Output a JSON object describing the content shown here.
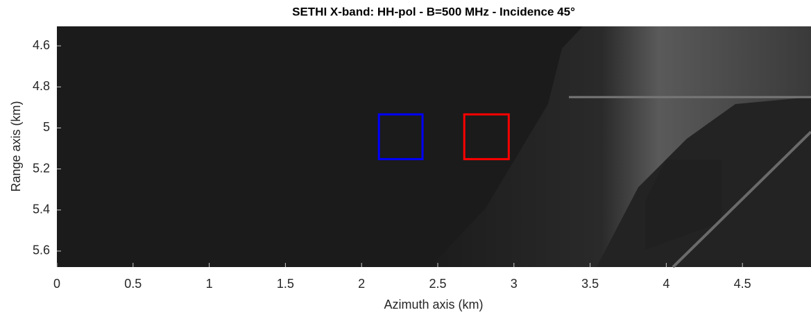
{
  "chart_data": {
    "type": "image",
    "title": "SETHI X-band: HH-pol - B=500 MHz - Incidence 45°",
    "xlabel": "Azimuth axis (km)",
    "ylabel": "Range axis (km)",
    "xlim": [
      0,
      4.95
    ],
    "ylim": [
      4.505,
      5.678
    ],
    "y_reversed": true,
    "xticks": [
      0,
      0.5,
      1,
      1.5,
      2,
      2.5,
      3,
      3.5,
      4,
      4.5
    ],
    "yticks": [
      4.6,
      4.8,
      5,
      5.2,
      5.4,
      5.6
    ],
    "rectangles": [
      {
        "color": "#0000ff",
        "x": [
          2.114,
          2.4
        ],
        "y": [
          4.934,
          5.152
        ]
      },
      {
        "color": "#ff0000",
        "x": [
          2.674,
          2.966
        ],
        "y": [
          4.934,
          5.152
        ]
      }
    ]
  }
}
